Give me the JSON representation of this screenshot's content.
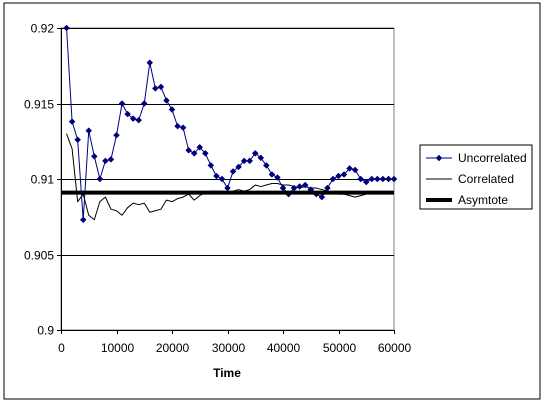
{
  "chart_data": {
    "type": "line",
    "title": "",
    "xlabel": "Time",
    "ylabel": "",
    "xlim": [
      0,
      60000
    ],
    "ylim": [
      0.9,
      0.92
    ],
    "xticks": [
      0,
      10000,
      20000,
      30000,
      40000,
      50000,
      60000
    ],
    "xtick_labels": [
      "0",
      "10000",
      "20000",
      "30000",
      "40000",
      "50000",
      "60000"
    ],
    "yticks": [
      0.9,
      0.905,
      0.91,
      0.915,
      0.92
    ],
    "ytick_labels": [
      "0.9",
      "0.905",
      "0.91",
      "0.915",
      "0.92"
    ],
    "grid": "horizontal",
    "legend_position": "right",
    "series": [
      {
        "name": "Uncorrelated",
        "color": "#00007F",
        "marker": "diamond",
        "line_width": 1,
        "x": [
          1000,
          2000,
          3000,
          4000,
          5000,
          6000,
          7000,
          8000,
          9000,
          10000,
          11000,
          12000,
          13000,
          14000,
          15000,
          16000,
          17000,
          18000,
          19000,
          20000,
          21000,
          22000,
          23000,
          24000,
          25000,
          26000,
          27000,
          28000,
          29000,
          30000,
          31000,
          32000,
          33000,
          34000,
          35000,
          36000,
          37000,
          38000,
          39000,
          40000,
          41000,
          42000,
          43000,
          44000,
          45000,
          46000,
          47000,
          48000,
          49000,
          50000,
          51000,
          52000,
          53000,
          54000,
          55000,
          56000,
          57000,
          58000,
          59000,
          60000
        ],
        "y": [
          0.92,
          0.9138,
          0.9126,
          0.9073,
          0.9132,
          0.9115,
          0.91,
          0.9112,
          0.9113,
          0.9129,
          0.915,
          0.9143,
          0.914,
          0.9139,
          0.915,
          0.9177,
          0.916,
          0.9161,
          0.9152,
          0.9146,
          0.9135,
          0.9134,
          0.9119,
          0.9117,
          0.9121,
          0.9117,
          0.9109,
          0.9102,
          0.91,
          0.9094,
          0.9105,
          0.9108,
          0.9112,
          0.9112,
          0.9117,
          0.9114,
          0.9109,
          0.9103,
          0.9101,
          0.9094,
          0.909,
          0.9094,
          0.9095,
          0.9096,
          0.9093,
          0.909,
          0.9088,
          0.9094,
          0.91,
          0.9102,
          0.9103,
          0.9107,
          0.9106,
          0.91,
          0.9098,
          0.91,
          0.91,
          0.91,
          0.91,
          0.91
        ]
      },
      {
        "name": "Correlated",
        "color": "#000000",
        "marker": "none",
        "line_width": 1,
        "x": [
          1000,
          2000,
          3000,
          4000,
          5000,
          6000,
          7000,
          8000,
          9000,
          10000,
          11000,
          12000,
          13000,
          14000,
          15000,
          16000,
          17000,
          18000,
          19000,
          20000,
          21000,
          22000,
          23000,
          24000,
          25000,
          26000,
          27000,
          28000,
          29000,
          30000,
          31000,
          32000,
          33000,
          34000,
          35000,
          36000,
          37000,
          38000,
          39000,
          40000,
          41000,
          42000,
          43000,
          44000,
          45000,
          46000,
          47000,
          48000,
          49000,
          50000,
          51000,
          52000,
          53000,
          54000,
          55000,
          56000,
          57000,
          58000,
          59000,
          60000
        ],
        "y": [
          0.913,
          0.912,
          0.9085,
          0.909,
          0.9076,
          0.9073,
          0.9085,
          0.9088,
          0.908,
          0.9079,
          0.9076,
          0.9081,
          0.9084,
          0.9083,
          0.9084,
          0.9078,
          0.9079,
          0.908,
          0.9086,
          0.9085,
          0.9087,
          0.9088,
          0.909,
          0.9086,
          0.9089,
          0.9091,
          0.9092,
          0.9092,
          0.9092,
          0.9091,
          0.9092,
          0.9093,
          0.9092,
          0.9093,
          0.9096,
          0.9095,
          0.9096,
          0.9097,
          0.9097,
          0.9096,
          0.9096,
          0.9095,
          0.9094,
          0.9095,
          0.9094,
          0.9094,
          0.9093,
          0.9092,
          0.9091,
          0.909,
          0.909,
          0.9089,
          0.9088,
          0.9089,
          0.909,
          0.9091,
          0.9091,
          0.9091,
          0.9091,
          0.9091
        ]
      },
      {
        "name": "Asymtote",
        "color": "#000000",
        "marker": "none",
        "line_width": 4,
        "x": [
          0,
          60000
        ],
        "y": [
          0.9091,
          0.9091
        ]
      }
    ]
  }
}
